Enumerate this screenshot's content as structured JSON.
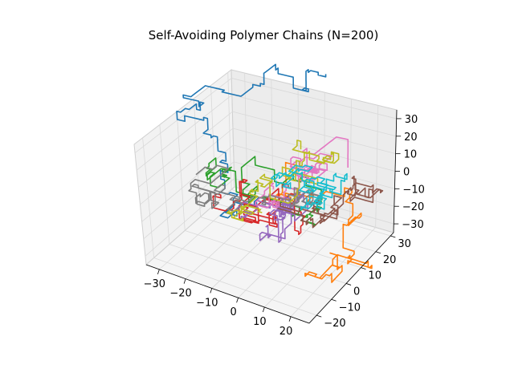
{
  "chart_data": {
    "type": "line3d",
    "title": "Self-Avoiding Polymer Chains (N=200)",
    "xlabel": "",
    "ylabel": "",
    "zlabel": "",
    "grid": true,
    "legend": "none",
    "xlim": [
      -35,
      27
    ],
    "ylim": [
      -25,
      32
    ],
    "zlim": [
      -35,
      35
    ],
    "x_ticks": [
      "−30",
      "−20",
      "−10",
      "0",
      "10",
      "20"
    ],
    "y_ticks": [
      "−20",
      "−10",
      "0",
      "10",
      "20",
      "30"
    ],
    "z_ticks": [
      "−30",
      "−20",
      "−10",
      "0",
      "10",
      "20",
      "30"
    ],
    "chain_count": 10,
    "chain_length": 200,
    "series_colors": [
      "#1f77b4",
      "#ff7f0e",
      "#2ca02c",
      "#d62728",
      "#9467bd",
      "#8c564b",
      "#e377c2",
      "#7f7f7f",
      "#bcbd22",
      "#17becf"
    ],
    "pane_color": "#f2f2f2",
    "pane_edge_color": "#d0d0d0",
    "grid_color": "#d9d9d9"
  }
}
